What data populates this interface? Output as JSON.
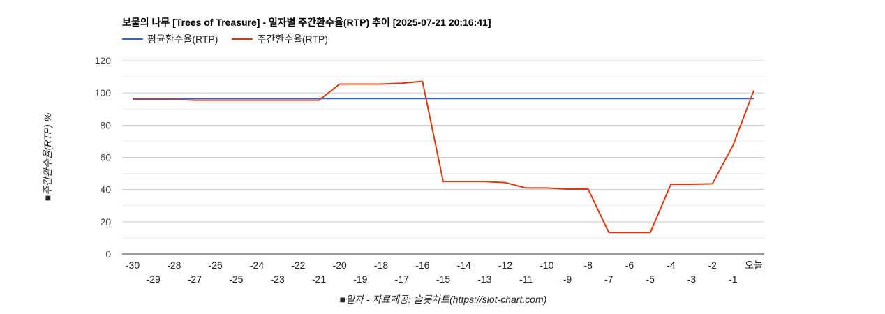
{
  "chart_data": {
    "type": "line",
    "title": "보물의 나무 [Trees of Treasure] - 일자별 주간환수율(RTP) 추이 [2025-07-21 20:16:41]",
    "xlabel": "■일자 - 자료제공: 슬롯차트(https://slot-chart.com)",
    "ylabel": "■주간환수율(RTP) %",
    "ylim": [
      0,
      120
    ],
    "yticks": [
      "0",
      "20",
      "40",
      "60",
      "80",
      "100",
      "120"
    ],
    "grid": true,
    "legend_position": "top-left",
    "categories": [
      "-30",
      "-29",
      "-28",
      "-27",
      "-26",
      "-25",
      "-24",
      "-23",
      "-22",
      "-21",
      "-20",
      "-19",
      "-18",
      "-17",
      "-16",
      "-15",
      "-14",
      "-13",
      "-12",
      "-11",
      "-10",
      "-9",
      "-8",
      "-7",
      "-6",
      "-5",
      "-4",
      "-3",
      "-2",
      "-1",
      "오늘"
    ],
    "series": [
      {
        "name": "평균환수율(RTP)",
        "color": "#3366cc",
        "values": [
          96.5,
          96.5,
          96.5,
          96.5,
          96.5,
          96.5,
          96.5,
          96.5,
          96.5,
          96.5,
          96.5,
          96.5,
          96.5,
          96.5,
          96.5,
          96.5,
          96.5,
          96.5,
          96.5,
          96.5,
          96.5,
          96.5,
          96.5,
          96.5,
          96.5,
          96.5,
          96.5,
          96.5,
          96.5,
          96.5,
          96.5
        ]
      },
      {
        "name": "주간환수율(RTP)",
        "color": "#dc3912",
        "values": [
          96,
          96,
          96,
          95.5,
          95.5,
          95.5,
          95.5,
          95.5,
          95.5,
          95.5,
          105.5,
          105.5,
          105.5,
          106,
          107.2,
          45,
          45,
          45,
          44.3,
          41,
          41,
          40.3,
          40.3,
          13.3,
          13.3,
          13.3,
          43.3,
          43.3,
          43.6,
          67.5,
          101.5
        ]
      }
    ]
  }
}
